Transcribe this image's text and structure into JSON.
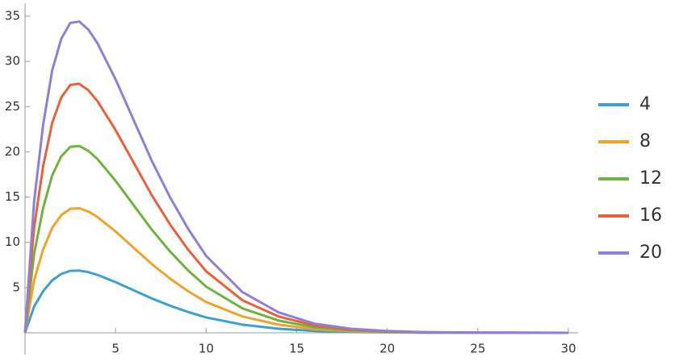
{
  "chart_data": {
    "type": "line",
    "x": [
      0,
      0.5,
      1,
      1.5,
      2,
      2.5,
      3,
      3.5,
      4,
      5,
      6,
      7,
      8,
      9,
      10,
      12,
      14,
      16,
      18,
      20,
      22,
      25,
      30
    ],
    "series": [
      {
        "name": "4",
        "color": "#3e9fd2",
        "values": [
          0,
          2.9,
          4.6,
          5.8,
          6.5,
          6.85,
          6.88,
          6.7,
          6.4,
          5.6,
          4.7,
          3.8,
          3.0,
          2.3,
          1.7,
          0.9,
          0.45,
          0.2,
          0.09,
          0.04,
          0.015,
          0.004,
          0
        ]
      },
      {
        "name": "8",
        "color": "#f0a22e",
        "values": [
          0,
          5.8,
          9.2,
          11.6,
          13,
          13.7,
          13.76,
          13.4,
          12.8,
          11.2,
          9.4,
          7.6,
          6,
          4.6,
          3.4,
          1.8,
          0.9,
          0.4,
          0.18,
          0.08,
          0.03,
          0.01,
          0
        ]
      },
      {
        "name": "12",
        "color": "#6fb33f",
        "values": [
          0,
          8.7,
          13.8,
          17.4,
          19.5,
          20.55,
          20.64,
          20.1,
          19.2,
          16.8,
          14.1,
          11.4,
          9,
          6.9,
          5.1,
          2.7,
          1.35,
          0.6,
          0.27,
          0.12,
          0.05,
          0.01,
          0
        ]
      },
      {
        "name": "16",
        "color": "#e8613a",
        "values": [
          0,
          11.6,
          18.4,
          23.2,
          26,
          27.4,
          27.52,
          26.8,
          25.6,
          22.4,
          18.8,
          15.2,
          12,
          9.2,
          6.8,
          3.6,
          1.8,
          0.8,
          0.36,
          0.16,
          0.06,
          0.02,
          0
        ]
      },
      {
        "name": "20",
        "color": "#8f7fd8",
        "values": [
          0,
          14.5,
          23,
          29,
          32.5,
          34.25,
          34.4,
          33.5,
          32,
          28,
          23.5,
          19,
          15,
          11.5,
          8.5,
          4.5,
          2.25,
          1,
          0.45,
          0.2,
          0.08,
          0.02,
          0
        ]
      }
    ],
    "xlim": [
      0,
      30
    ],
    "xticks": [
      5,
      10,
      15,
      20,
      25,
      30
    ],
    "ylim": [
      0,
      35
    ],
    "yticks": [
      5,
      10,
      15,
      20,
      25,
      30,
      35
    ],
    "legend": "right"
  }
}
